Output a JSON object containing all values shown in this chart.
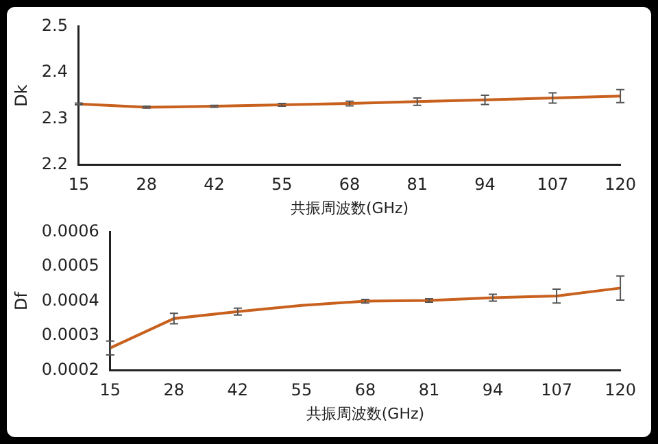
{
  "chart_data": [
    {
      "type": "line",
      "xlabel": "共振周波数(GHz)",
      "ylabel": "Dk",
      "categories": [
        "15",
        "28",
        "42",
        "55",
        "68",
        "81",
        "94",
        "107",
        "120"
      ],
      "series": [
        {
          "color": "#c8601e",
          "values": [
            2.332,
            2.325,
            2.327,
            2.33,
            2.333,
            2.337,
            2.341,
            2.345,
            2.349
          ],
          "errors": [
            0.002,
            0.002,
            0.002,
            0.003,
            0.005,
            0.008,
            0.01,
            0.011,
            0.014
          ]
        }
      ],
      "ylim": [
        2.2,
        2.5
      ],
      "yticks": [
        2.2,
        2.3,
        2.4,
        2.5
      ],
      "grid": false,
      "legend": false,
      "marker": "none",
      "line_style": "solid"
    },
    {
      "type": "line",
      "xlabel": "共振周波数(GHz)",
      "ylabel": "Df",
      "categories": [
        "15",
        "28",
        "42",
        "55",
        "68",
        "81",
        "94",
        "107",
        "120"
      ],
      "series": [
        {
          "color": "#c8601e",
          "values": [
            0.000265,
            0.00035,
            0.00037,
            0.000388,
            0.0004,
            0.000402,
            0.00041,
            0.000415,
            0.000438
          ],
          "errors": [
            2e-05,
            1.5e-05,
            1e-05,
            null,
            5e-06,
            5e-06,
            1e-05,
            2e-05,
            3.5e-05
          ]
        }
      ],
      "ylim": [
        0.0002,
        0.0006
      ],
      "yticks": [
        0.0002,
        0.0003,
        0.0004,
        0.0005,
        0.0006
      ],
      "grid": false,
      "legend": false,
      "marker": "none",
      "line_style": "solid"
    }
  ]
}
